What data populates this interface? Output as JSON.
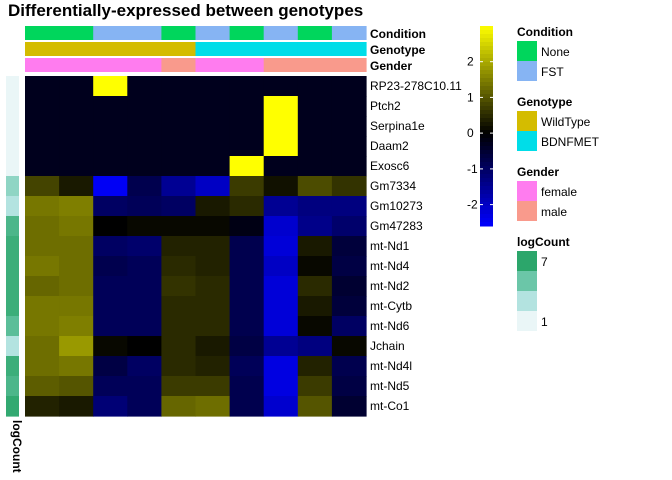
{
  "chart_data": {
    "type": "heatmap",
    "title": "Differentially-expressed between genotypes",
    "rows": [
      "RP23-278C10.11",
      "Ptch2",
      "Serpina1e",
      "Daam2",
      "Exosc6",
      "Gm7334",
      "Gm10273",
      "Gm47283",
      "mt-Nd1",
      "mt-Nd4",
      "mt-Nd2",
      "mt-Cytb",
      "mt-Nd6",
      "Jchain",
      "mt-Nd4l",
      "mt-Nd5",
      "mt-Co1"
    ],
    "n_columns": 10,
    "values": [
      [
        -0.3,
        -0.3,
        3.0,
        -0.3,
        -0.3,
        -0.3,
        -0.3,
        -0.3,
        -0.3,
        -0.3
      ],
      [
        -0.3,
        -0.3,
        -0.3,
        -0.3,
        -0.3,
        -0.3,
        -0.3,
        3.0,
        -0.3,
        -0.3
      ],
      [
        -0.3,
        -0.3,
        -0.3,
        -0.3,
        -0.3,
        -0.3,
        -0.3,
        3.0,
        -0.3,
        -0.3
      ],
      [
        -0.3,
        -0.3,
        -0.3,
        -0.3,
        -0.3,
        -0.3,
        -0.3,
        3.0,
        -0.3,
        -0.3
      ],
      [
        -0.3,
        -0.3,
        -0.3,
        -0.3,
        -0.3,
        -0.3,
        3.0,
        -0.3,
        -0.3,
        -0.3
      ],
      [
        0.8,
        0.3,
        -2.5,
        -0.8,
        -1.5,
        -2.0,
        0.7,
        0.2,
        0.9,
        0.6
      ],
      [
        1.4,
        1.5,
        -1.0,
        -0.9,
        -1.0,
        0.3,
        0.5,
        -1.5,
        -1.3,
        -1.3
      ],
      [
        1.3,
        1.4,
        0.0,
        0.1,
        0.1,
        0.1,
        -0.2,
        -2.1,
        -1.4,
        -1.1
      ],
      [
        1.3,
        1.3,
        -1.0,
        -1.1,
        0.4,
        0.4,
        -0.8,
        -2.2,
        0.3,
        -0.6
      ],
      [
        1.4,
        1.3,
        -0.8,
        -0.9,
        0.5,
        0.4,
        -0.8,
        -2.0,
        0.1,
        -0.7
      ],
      [
        1.2,
        1.3,
        -0.9,
        -0.9,
        0.6,
        0.5,
        -0.8,
        -2.2,
        0.5,
        -0.5
      ],
      [
        1.4,
        1.4,
        -0.9,
        -0.9,
        0.5,
        0.5,
        -0.8,
        -2.2,
        0.3,
        -0.6
      ],
      [
        1.4,
        1.5,
        -0.9,
        -0.9,
        0.5,
        0.5,
        -0.8,
        -2.2,
        0.1,
        -1.0
      ],
      [
        1.3,
        1.8,
        0.1,
        0.0,
        0.5,
        0.3,
        -0.7,
        -1.5,
        -1.3,
        0.1
      ],
      [
        1.3,
        1.4,
        -0.7,
        -1.0,
        0.5,
        0.4,
        -0.9,
        -2.3,
        0.4,
        -0.8
      ],
      [
        1.1,
        1.0,
        -0.9,
        -0.9,
        0.7,
        0.7,
        -0.8,
        -2.3,
        0.7,
        -0.7
      ],
      [
        0.4,
        0.3,
        -1.2,
        -0.9,
        1.2,
        1.3,
        -0.8,
        -2.1,
        1.0,
        -0.5
      ]
    ],
    "col_annotations": {
      "Condition": [
        "None",
        "None",
        "FST",
        "FST",
        "None",
        "FST",
        "None",
        "FST",
        "None",
        "FST"
      ],
      "Genotype": [
        "WildType",
        "WildType",
        "WildType",
        "WildType",
        "WildType",
        "BDNFMET",
        "BDNFMET",
        "BDNFMET",
        "BDNFMET",
        "BDNFMET"
      ],
      "Gender": [
        "female",
        "female",
        "female",
        "female",
        "male",
        "female",
        "female",
        "male",
        "male",
        "male"
      ]
    },
    "row_annotation": {
      "name": "logCount",
      "values": [
        1.0,
        1.0,
        1.0,
        1.0,
        1.0,
        4.0,
        3.0,
        6.0,
        6.5,
        6.5,
        6.5,
        6.5,
        5.5,
        3.0,
        6.5,
        6.0,
        6.8
      ]
    },
    "colorbar": {
      "ticks": [
        2,
        1,
        0,
        -1,
        -2
      ],
      "range": [
        -2.6,
        3.0
      ]
    },
    "legends": [
      {
        "title": "Condition",
        "items": [
          {
            "label": "None",
            "color": "#00D65C"
          },
          {
            "label": "FST",
            "color": "#86B4F3"
          }
        ]
      },
      {
        "title": "Genotype",
        "items": [
          {
            "label": "WildType",
            "color": "#D4BC00"
          },
          {
            "label": "BDNFMET",
            "color": "#00DDE8"
          }
        ]
      },
      {
        "title": "Gender",
        "items": [
          {
            "label": "female",
            "color": "#FF7CEF"
          },
          {
            "label": "male",
            "color": "#F99A8C"
          }
        ]
      },
      {
        "title": "logCount",
        "items": [
          {
            "label": "7",
            "color": "#2CA66B"
          },
          {
            "label": "",
            "color": "#6BC6A8"
          },
          {
            "label": "",
            "color": "#B3E3E0"
          },
          {
            "label": "1",
            "color": "#EAF6F7"
          }
        ]
      }
    ],
    "annotation_colors": {
      "Condition": {
        "None": "#00D65C",
        "FST": "#86B4F3"
      },
      "Genotype": {
        "WildType": "#D4BC00",
        "BDNFMET": "#00DDE8"
      },
      "Gender": {
        "female": "#FF7CEF",
        "male": "#F99A8C"
      }
    },
    "logcount_colors": [
      "#EAF6F7",
      "#B3E3E0",
      "#6BC6A8",
      "#2CA66B"
    ]
  }
}
